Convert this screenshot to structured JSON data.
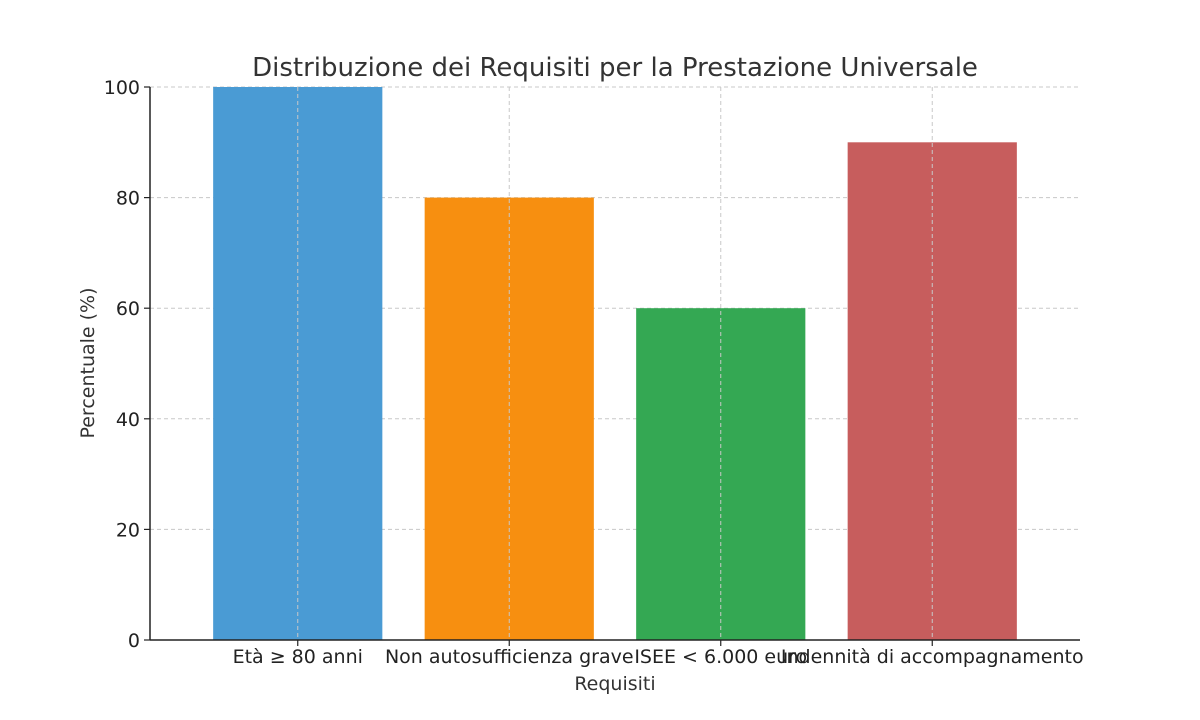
{
  "chart_data": {
    "type": "bar",
    "title": "Distribuzione dei Requisiti per la Prestazione Universale",
    "xlabel": "Requisiti",
    "ylabel": "Percentuale (%)",
    "categories": [
      "Età ≥ 80 anni",
      "Non autosufficienza grave",
      "ISEE < 6.000 euro",
      "Indennità di accompagnamento"
    ],
    "values": [
      100,
      80,
      60,
      90
    ],
    "colors": [
      "#4a9bd4",
      "#f78f10",
      "#34a853",
      "#c75d5d"
    ],
    "ylim": [
      0,
      100
    ],
    "yticks": [
      0,
      20,
      40,
      60,
      80,
      100
    ],
    "grid": true,
    "legend": "none"
  }
}
